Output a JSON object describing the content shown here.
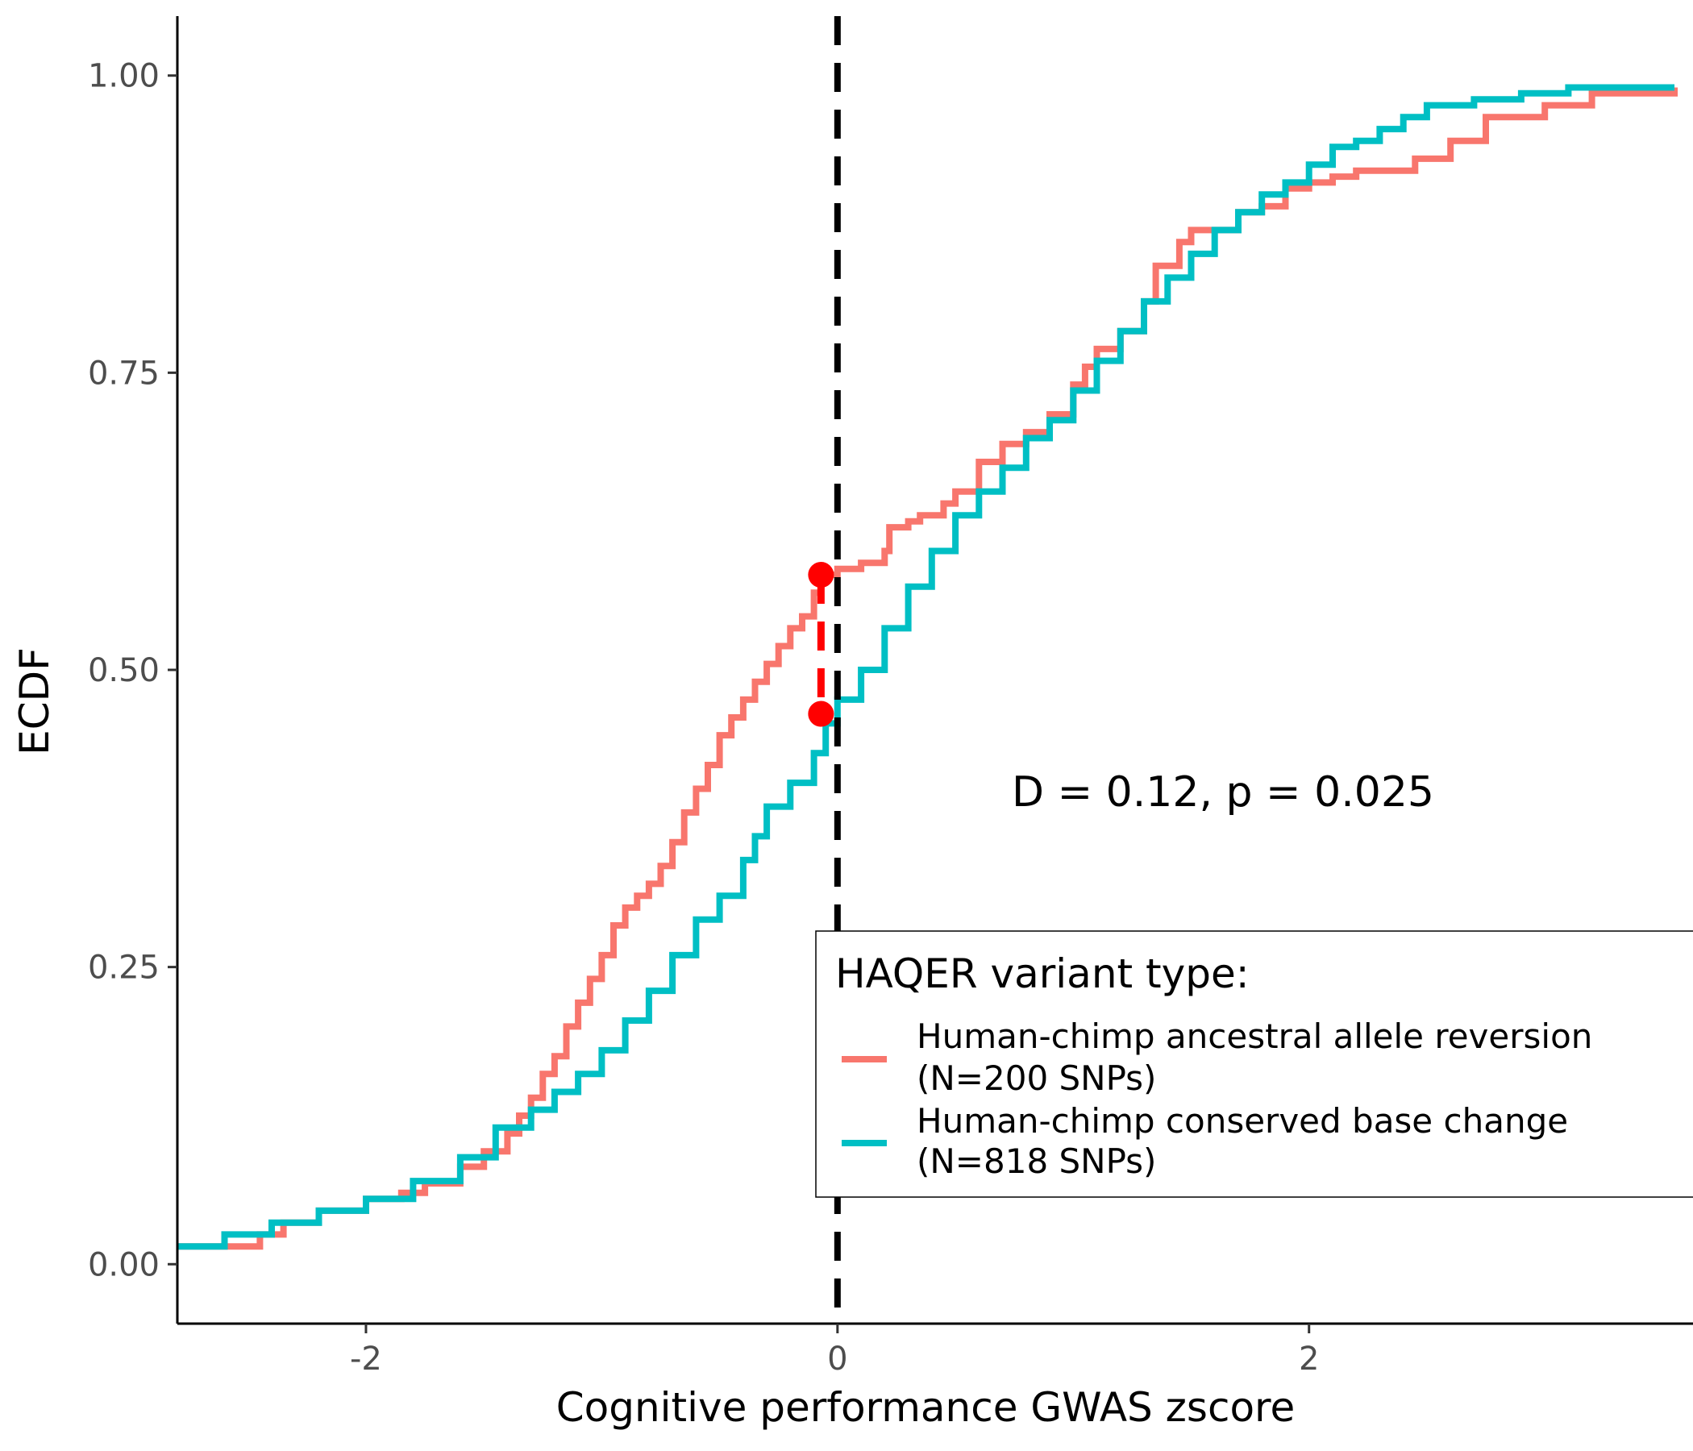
{
  "chart_data": {
    "type": "line",
    "title": "",
    "xlabel": "Cognitive performance GWAS zscore",
    "ylabel": "ECDF",
    "xlim": [
      -2.8,
      3.55
    ],
    "ylim": [
      -0.05,
      1.05
    ],
    "x_ticks": [
      -2,
      0,
      2
    ],
    "x_tick_labels": [
      "-2",
      "0",
      "2"
    ],
    "y_ticks": [
      0,
      0.25,
      0.5,
      0.75,
      1.0
    ],
    "y_tick_labels": [
      "0.00",
      "0.25",
      "0.50",
      "0.75",
      "1.00"
    ],
    "grid": false,
    "reference_line": {
      "x": 0,
      "style": "dashed",
      "color": "#000000"
    },
    "ks_statistic": {
      "x": -0.07,
      "y_high": 0.58,
      "y_low": 0.463,
      "color": "#ff0000",
      "label": "D = 0.12, p = 0.025"
    },
    "legend": {
      "title": "HAQER variant type:",
      "placement": "bottom-right"
    },
    "series": [
      {
        "name": "Human-chimp ancestral allele reversion\n(N=200 SNPs)",
        "color": "#f8766d",
        "points": [
          [
            -2.8,
            0.015
          ],
          [
            -2.5,
            0.015
          ],
          [
            -2.45,
            0.025
          ],
          [
            -2.35,
            0.035
          ],
          [
            -2.2,
            0.045
          ],
          [
            -2.0,
            0.055
          ],
          [
            -1.85,
            0.06
          ],
          [
            -1.75,
            0.068
          ],
          [
            -1.6,
            0.082
          ],
          [
            -1.5,
            0.095
          ],
          [
            -1.4,
            0.11
          ],
          [
            -1.35,
            0.125
          ],
          [
            -1.3,
            0.14
          ],
          [
            -1.25,
            0.16
          ],
          [
            -1.2,
            0.175
          ],
          [
            -1.15,
            0.2
          ],
          [
            -1.1,
            0.22
          ],
          [
            -1.05,
            0.24
          ],
          [
            -1.0,
            0.26
          ],
          [
            -0.95,
            0.285
          ],
          [
            -0.9,
            0.3
          ],
          [
            -0.85,
            0.31
          ],
          [
            -0.8,
            0.32
          ],
          [
            -0.75,
            0.335
          ],
          [
            -0.7,
            0.355
          ],
          [
            -0.65,
            0.38
          ],
          [
            -0.6,
            0.4
          ],
          [
            -0.55,
            0.42
          ],
          [
            -0.5,
            0.445
          ],
          [
            -0.45,
            0.46
          ],
          [
            -0.4,
            0.475
          ],
          [
            -0.35,
            0.49
          ],
          [
            -0.3,
            0.505
          ],
          [
            -0.25,
            0.52
          ],
          [
            -0.2,
            0.535
          ],
          [
            -0.15,
            0.545
          ],
          [
            -0.1,
            0.565
          ],
          [
            -0.07,
            0.58
          ],
          [
            0.0,
            0.585
          ],
          [
            0.1,
            0.59
          ],
          [
            0.2,
            0.6
          ],
          [
            0.22,
            0.62
          ],
          [
            0.3,
            0.625
          ],
          [
            0.35,
            0.63
          ],
          [
            0.45,
            0.64
          ],
          [
            0.5,
            0.65
          ],
          [
            0.6,
            0.675
          ],
          [
            0.7,
            0.69
          ],
          [
            0.8,
            0.7
          ],
          [
            0.9,
            0.715
          ],
          [
            1.0,
            0.74
          ],
          [
            1.05,
            0.755
          ],
          [
            1.1,
            0.77
          ],
          [
            1.2,
            0.785
          ],
          [
            1.3,
            0.81
          ],
          [
            1.35,
            0.84
          ],
          [
            1.45,
            0.86
          ],
          [
            1.5,
            0.87
          ],
          [
            1.6,
            0.87
          ],
          [
            1.7,
            0.885
          ],
          [
            1.8,
            0.89
          ],
          [
            1.9,
            0.905
          ],
          [
            2.0,
            0.91
          ],
          [
            2.1,
            0.915
          ],
          [
            2.2,
            0.92
          ],
          [
            2.3,
            0.92
          ],
          [
            2.45,
            0.93
          ],
          [
            2.6,
            0.945
          ],
          [
            2.75,
            0.965
          ],
          [
            3.0,
            0.975
          ],
          [
            3.2,
            0.985
          ],
          [
            3.55,
            0.99
          ]
        ]
      },
      {
        "name": "Human-chimp conserved base change\n(N=818 SNPs)",
        "color": "#00bfc4",
        "points": [
          [
            -2.8,
            0.015
          ],
          [
            -2.6,
            0.025
          ],
          [
            -2.4,
            0.035
          ],
          [
            -2.2,
            0.045
          ],
          [
            -2.0,
            0.055
          ],
          [
            -1.8,
            0.07
          ],
          [
            -1.6,
            0.09
          ],
          [
            -1.45,
            0.115
          ],
          [
            -1.3,
            0.13
          ],
          [
            -1.2,
            0.145
          ],
          [
            -1.1,
            0.16
          ],
          [
            -1.0,
            0.18
          ],
          [
            -0.9,
            0.205
          ],
          [
            -0.8,
            0.23
          ],
          [
            -0.7,
            0.26
          ],
          [
            -0.6,
            0.29
          ],
          [
            -0.5,
            0.31
          ],
          [
            -0.4,
            0.34
          ],
          [
            -0.35,
            0.36
          ],
          [
            -0.3,
            0.385
          ],
          [
            -0.2,
            0.405
          ],
          [
            -0.1,
            0.43
          ],
          [
            -0.05,
            0.455
          ],
          [
            0.0,
            0.475
          ],
          [
            0.1,
            0.5
          ],
          [
            0.2,
            0.535
          ],
          [
            0.3,
            0.57
          ],
          [
            0.4,
            0.6
          ],
          [
            0.5,
            0.63
          ],
          [
            0.6,
            0.65
          ],
          [
            0.7,
            0.67
          ],
          [
            0.8,
            0.695
          ],
          [
            0.9,
            0.71
          ],
          [
            1.0,
            0.735
          ],
          [
            1.1,
            0.76
          ],
          [
            1.2,
            0.785
          ],
          [
            1.3,
            0.81
          ],
          [
            1.4,
            0.83
          ],
          [
            1.5,
            0.85
          ],
          [
            1.6,
            0.87
          ],
          [
            1.7,
            0.885
          ],
          [
            1.8,
            0.9
          ],
          [
            1.9,
            0.91
          ],
          [
            2.0,
            0.925
          ],
          [
            2.1,
            0.94
          ],
          [
            2.2,
            0.945
          ],
          [
            2.3,
            0.955
          ],
          [
            2.4,
            0.965
          ],
          [
            2.5,
            0.975
          ],
          [
            2.7,
            0.98
          ],
          [
            2.9,
            0.985
          ],
          [
            3.1,
            0.99
          ],
          [
            3.55,
            0.99
          ]
        ]
      }
    ]
  }
}
